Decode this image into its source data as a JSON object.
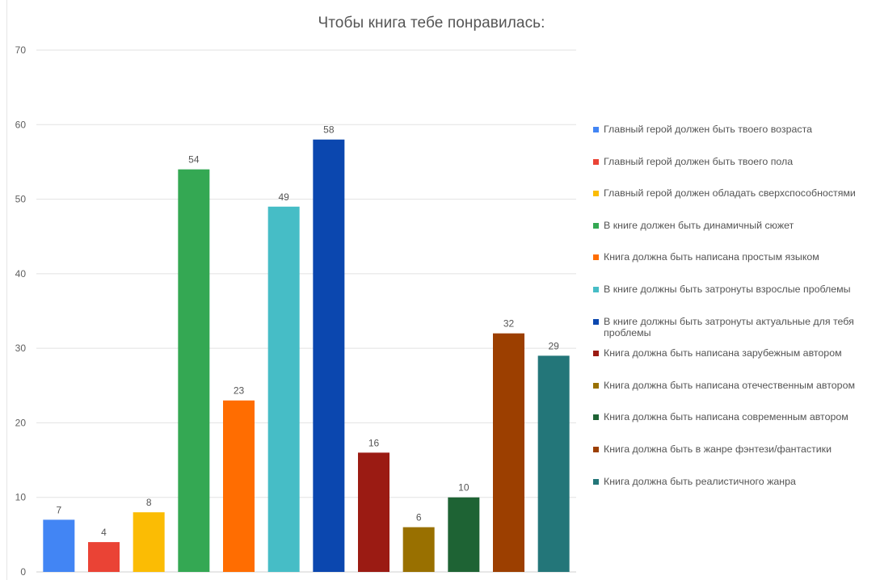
{
  "chart_data": {
    "type": "bar",
    "title": "Чтобы книга тебе понравилась:",
    "xlabel": "",
    "ylabel": "",
    "ylim": [
      0,
      70
    ],
    "yticks": [
      0,
      10,
      20,
      30,
      40,
      50,
      60,
      70
    ],
    "grid": true,
    "legend_position": "right",
    "categories": [
      "Главный герой должен быть твоего возраста",
      "Главный герой должен быть твоего пола",
      "Главный герой должен обладать сверхспособностями",
      "В книге должен быть динамичный сюжет",
      "Книга должна быть написана простым языком",
      "В книге должны быть затронуты взрослые проблемы",
      "В книге должны быть затронуты актуальные для тебя проблемы",
      "Книга должна быть написана зарубежным автором",
      "Книга должна быть написана отечественным автором",
      "Книга должна быть написана современным автором",
      "Книга должна быть в жанре фэнтези/фантастики",
      "Книга должна быть реалистичного жанра"
    ],
    "values": [
      7,
      4,
      8,
      54,
      23,
      49,
      58,
      16,
      6,
      10,
      32,
      29
    ],
    "colors": [
      "#4285F4",
      "#EA4335",
      "#FBBC04",
      "#34A853",
      "#FF6D01",
      "#46BDC6",
      "#0B47AF",
      "#9B1B13",
      "#997000",
      "#1E6334",
      "#9C3F00",
      "#237679"
    ]
  }
}
